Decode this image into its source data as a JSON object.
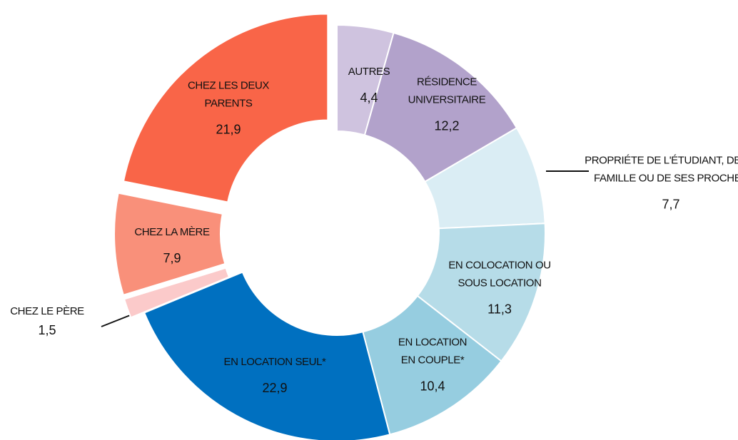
{
  "chart_data": {
    "type": "donut",
    "categories": [
      "AUTRES",
      "RÉSIDENCE UNIVERSITAIRE",
      "PROPRIÉTE DE L'ÉTUDIANT, DE SA FAMILLE OU DE SES PROCHES",
      "EN COLOCATION OU SOUS LOCATION",
      "EN LOCATION EN COUPLE*",
      "EN LOCATION SEUL*",
      "CHEZ LE PÈRE",
      "CHEZ LA MÈRE",
      "CHEZ LES DEUX PARENTS"
    ],
    "values": [
      4.4,
      12.2,
      7.7,
      11.3,
      10.4,
      22.9,
      1.5,
      7.9,
      21.9
    ],
    "value_labels": [
      "4,4",
      "12,2",
      "7,7",
      "11,3",
      "10,4",
      "22,9",
      "1,5",
      "7,9",
      "21,9"
    ],
    "colors": [
      "#cfc3df",
      "#b2a2cb",
      "#daedf4",
      "#b6dce8",
      "#96cde0",
      "#0070c0",
      "#fbcaca",
      "#f9907a",
      "#f96548"
    ],
    "exploded": [
      false,
      false,
      false,
      false,
      false,
      false,
      true,
      true,
      true
    ]
  }
}
